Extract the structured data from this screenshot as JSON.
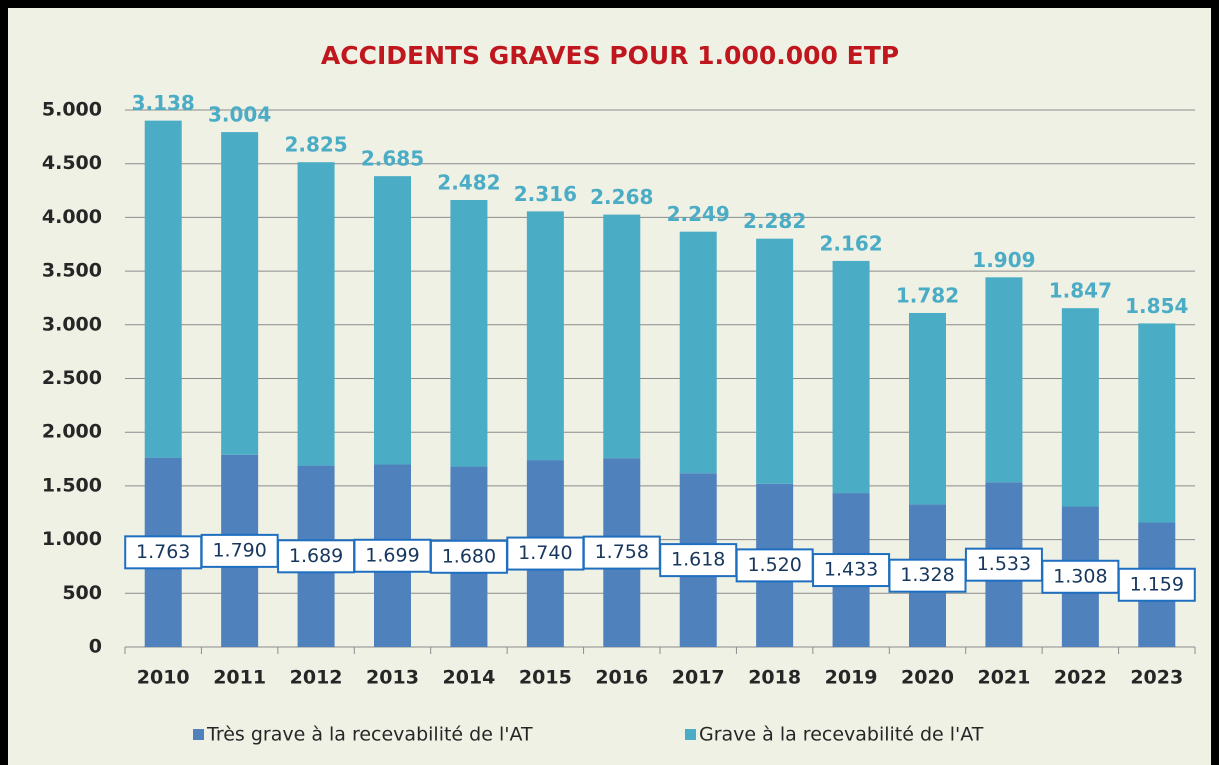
{
  "chart_data": {
    "type": "stacked_bar",
    "title": "ACCIDENTS GRAVES POUR 1.000.000 ETP",
    "categories": [
      "2010",
      "2011",
      "2012",
      "2013",
      "2014",
      "2015",
      "2016",
      "2017",
      "2018",
      "2019",
      "2020",
      "2021",
      "2022",
      "2023"
    ],
    "series": [
      {
        "name": "Très grave à la recevabilité de l'AT",
        "color": "#4f81bd",
        "values": [
          1763,
          1790,
          1689,
          1699,
          1680,
          1740,
          1758,
          1618,
          1520,
          1433,
          1328,
          1533,
          1308,
          1159
        ],
        "value_labels": [
          "1.763",
          "1.790",
          "1.689",
          "1.699",
          "1.680",
          "1.740",
          "1.758",
          "1.618",
          "1.520",
          "1.433",
          "1.328",
          "1.533",
          "1.308",
          "1.159"
        ]
      },
      {
        "name": "Grave à la recevabilité de l'AT",
        "color": "#4bacc6",
        "values": [
          3138,
          3004,
          2825,
          2685,
          2482,
          2316,
          2268,
          2249,
          2282,
          2162,
          1782,
          1909,
          1847,
          1854
        ],
        "value_labels": [
          "3.138",
          "3.004",
          "2.825",
          "2.685",
          "2.482",
          "2.316",
          "2.268",
          "2.249",
          "2.282",
          "2.162",
          "1.782",
          "1.909",
          "1.847",
          "1.854"
        ]
      }
    ],
    "ylim": [
      0,
      5000
    ],
    "yticks": [
      0,
      {
        "value": 500,
        "label": "500"
      },
      {
        "value": 1000,
        "label": "1.000"
      },
      {
        "value": 1500,
        "label": "1.500"
      },
      {
        "value": 2000,
        "label": "2.000"
      },
      {
        "value": 2500,
        "label": "2.500"
      },
      {
        "value": 3000,
        "label": "3.000"
      },
      {
        "value": 3500,
        "label": "3.500"
      },
      {
        "value": 4000,
        "label": "4.000"
      },
      {
        "value": 4500,
        "label": "4.500"
      },
      {
        "value": 5000,
        "label": "5.000"
      }
    ],
    "grid": true,
    "legend": "bottom"
  }
}
